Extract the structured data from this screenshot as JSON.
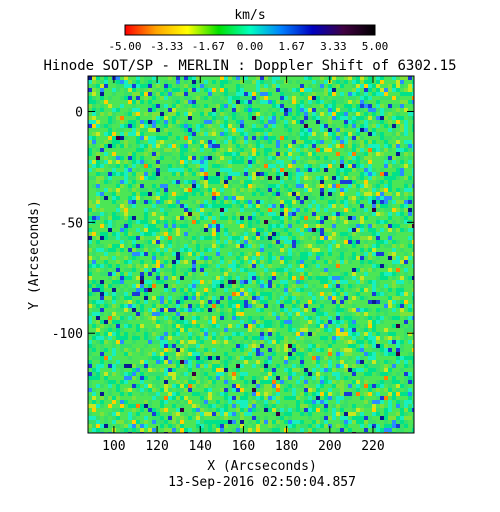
{
  "chart_data": {
    "type": "heatmap",
    "title": "Hinode SOT/SP - MERLIN : Doppler Shift of 6302.15",
    "subtitle": "13-Sep-2016 02:50:04.857",
    "xlabel": "X (Arcseconds)",
    "ylabel": "Y (Arcseconds)",
    "xlim": [
      88,
      239
    ],
    "ylim": [
      -145,
      16
    ],
    "x_ticks": [
      100,
      120,
      140,
      160,
      180,
      200,
      220
    ],
    "y_ticks": [
      0,
      -50,
      -100
    ],
    "colorbar": {
      "label": "km/s",
      "range": [
        -5.0,
        5.0
      ],
      "ticks": [
        "-5.00",
        "-3.33",
        "-1.67",
        "0.00",
        "1.67",
        "3.33",
        "5.00"
      ],
      "colors": [
        "#ff0000",
        "#ffa500",
        "#ffff00",
        "#00e000",
        "#00ffc0",
        "#0080ff",
        "#0000c0",
        "#400040",
        "#000000"
      ]
    },
    "dominant_value_kms": 0.0,
    "value_spread_kms": [
      -2.0,
      2.5
    ]
  }
}
